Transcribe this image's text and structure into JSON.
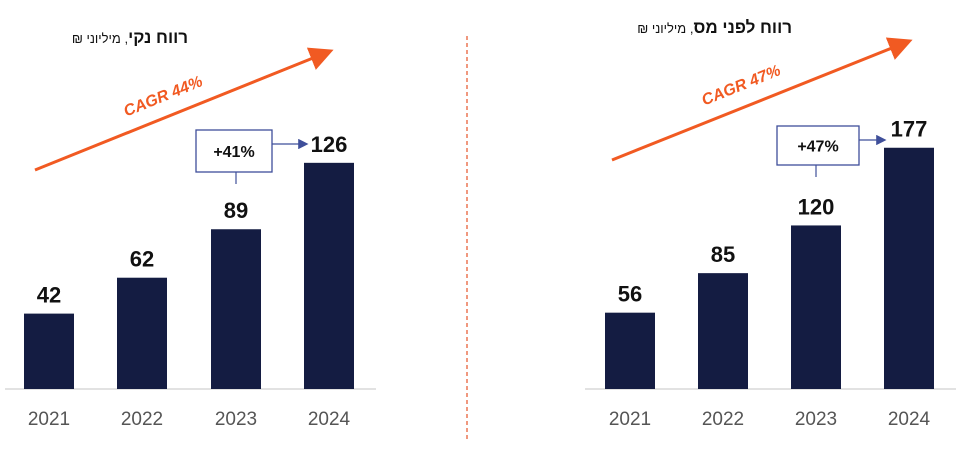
{
  "chart_data": [
    {
      "type": "bar",
      "title_bold": "רווח נקי",
      "title_unit": ", מיליוני ₪",
      "categories": [
        "2021",
        "2022",
        "2023",
        "2024"
      ],
      "values": [
        42,
        62,
        89,
        126
      ],
      "cagr_label": "CAGR 44%",
      "growth_label": "+41%",
      "bar_color": "#141c42"
    },
    {
      "type": "bar",
      "title_bold": "רווח לפני מס",
      "title_unit": ", מיליוני ₪",
      "categories": [
        "2021",
        "2022",
        "2023",
        "2024"
      ],
      "values": [
        56,
        85,
        120,
        177
      ],
      "cagr_label": "CAGR 47%",
      "growth_label": "+47%",
      "bar_color": "#141c42"
    }
  ],
  "colors": {
    "accent": "#f15a22",
    "divider": "#e8603a",
    "callout": "#3f4f9a",
    "bar": "#141c42"
  }
}
